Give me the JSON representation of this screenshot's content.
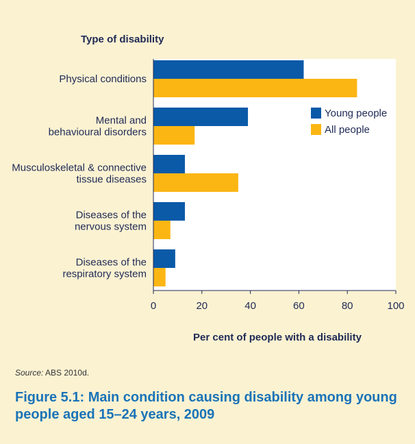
{
  "chart_data": {
    "type": "bar",
    "orientation": "horizontal",
    "title": "Type of disability",
    "xlabel": "Per cent of people with a disability",
    "ylabel": "",
    "xlim": [
      0,
      100
    ],
    "xticks": [
      "0",
      "20",
      "40",
      "60",
      "80",
      "100"
    ],
    "categories": [
      [
        "Physical conditions"
      ],
      [
        "Mental and",
        "behavioural disorders"
      ],
      [
        "Musculoskeletal & connective",
        "tissue diseases"
      ],
      [
        "Diseases of the",
        "nervous system"
      ],
      [
        "Diseases of the",
        "respiratory system"
      ]
    ],
    "series": [
      {
        "name": "Young people",
        "color": "#0a5aa8",
        "values": [
          62,
          39,
          13,
          13,
          9
        ]
      },
      {
        "name": "All people",
        "color": "#fbb614",
        "values": [
          84,
          17,
          35,
          7,
          5
        ]
      }
    ],
    "legend_position": "top-right",
    "grid": false
  },
  "source_label": "Source:",
  "source_text": " ABS 2010d.",
  "caption": "Figure 5.1: Main condition causing disability among young people aged 15–24 years, 2009",
  "colors": {
    "background": "#fbf2d2",
    "plot_area": "#ffffff",
    "caption": "#1a73b8"
  }
}
